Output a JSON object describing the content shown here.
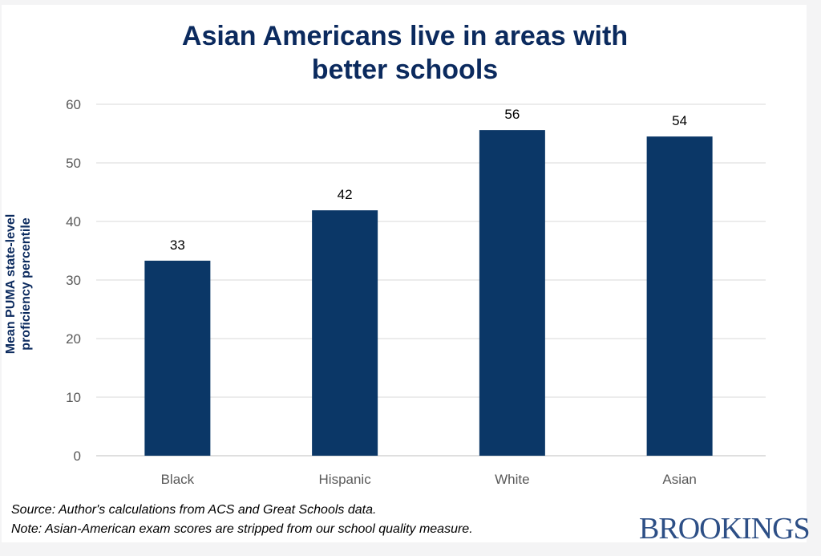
{
  "chart_data": {
    "type": "bar",
    "title": "Asian Americans live in areas with better schools",
    "title_lines": [
      "Asian Americans live in areas with",
      "better schools"
    ],
    "ylabel_lines": [
      "Mean PUMA  state-level",
      "proficiency percentile"
    ],
    "xlabel": "",
    "categories": [
      "Black",
      "Hispanic",
      "White",
      "Asian"
    ],
    "values": [
      33.3,
      41.9,
      55.6,
      54.5
    ],
    "data_labels": [
      "33",
      "42",
      "56",
      "54"
    ],
    "ylim": [
      0,
      60
    ],
    "yticks": [
      0,
      10,
      20,
      30,
      40,
      50,
      60
    ],
    "grid": true,
    "bar_color": "#0b3767"
  },
  "notes": {
    "source": "Source: Author's calculations from ACS and Great Schools data.",
    "note": "Note: Asian-American exam scores are stripped from our school quality measure."
  },
  "logo": "BROOKINGS"
}
